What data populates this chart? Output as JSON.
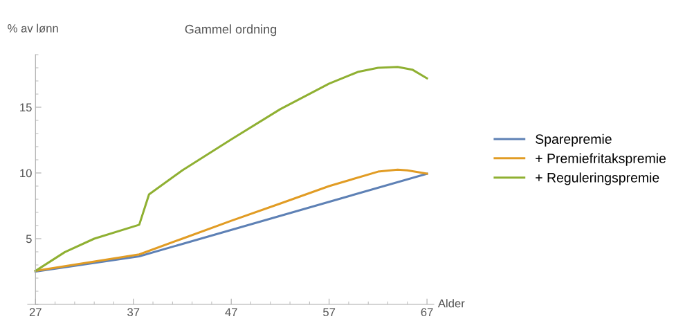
{
  "chart_data": {
    "type": "line",
    "title": "Gammel ordning",
    "xlabel": "Alder",
    "ylabel": "% av lønn",
    "xlim": [
      26.2,
      67.7
    ],
    "xticks": [
      27,
      37,
      47,
      57,
      67
    ],
    "ylim": [
      0,
      19
    ],
    "yticks": [
      5,
      10,
      15
    ],
    "grid": false,
    "legend": "right",
    "line_style": "solid",
    "marker": "none",
    "series": [
      {
        "name": "Sparepremie",
        "color": "#5e81b5",
        "x": [
          27,
          37.6,
          67
        ],
        "values": [
          2.5,
          3.66,
          9.94
        ]
      },
      {
        "name": "+ Premiefritakspremie",
        "color": "#e19c24",
        "x": [
          27,
          37.6,
          42,
          47,
          52,
          57,
          62,
          64,
          65,
          67
        ],
        "values": [
          2.55,
          3.8,
          5.0,
          6.36,
          7.67,
          9.0,
          10.1,
          10.25,
          10.2,
          9.95
        ]
      },
      {
        "name": "+ Reguleringspremie",
        "color": "#8fb032",
        "x": [
          27,
          30,
          33,
          37.6,
          38.6,
          42,
          47,
          52,
          57,
          60,
          62,
          64,
          65.5,
          67
        ],
        "values": [
          2.55,
          3.98,
          5.0,
          6.06,
          8.37,
          10.2,
          12.55,
          14.85,
          16.8,
          17.7,
          18.0,
          18.07,
          17.86,
          17.2
        ]
      }
    ]
  }
}
